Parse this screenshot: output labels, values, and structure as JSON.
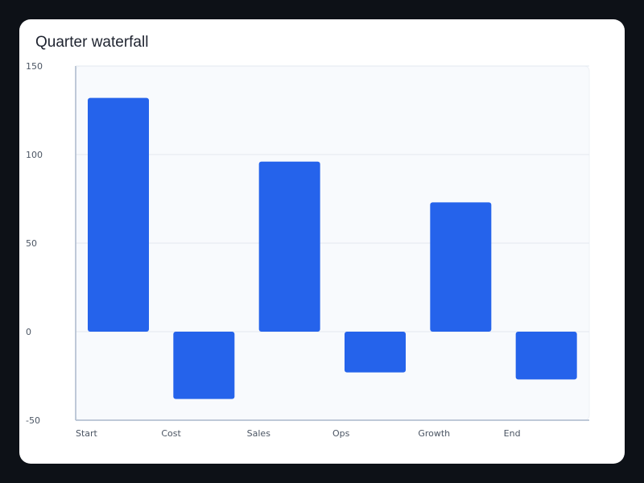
{
  "chart_data": {
    "type": "bar",
    "subtype": "waterfall",
    "title": "Quarter waterfall",
    "xlabel": "",
    "ylabel": "",
    "categories": [
      "Start",
      "Cost",
      "Sales",
      "Ops",
      "Growth",
      "End"
    ],
    "values": [
      132,
      -38,
      96,
      -23,
      73,
      -27
    ],
    "ylim": [
      -50,
      150
    ],
    "yticks": [
      "150",
      "100",
      "50",
      "0",
      "-50"
    ],
    "grid": true,
    "legend": "none",
    "colors": {
      "bar": "#2563eb",
      "plot_bg": "#f8fafd",
      "grid": "#e3e8f0",
      "axis": "#aab8cc"
    }
  }
}
